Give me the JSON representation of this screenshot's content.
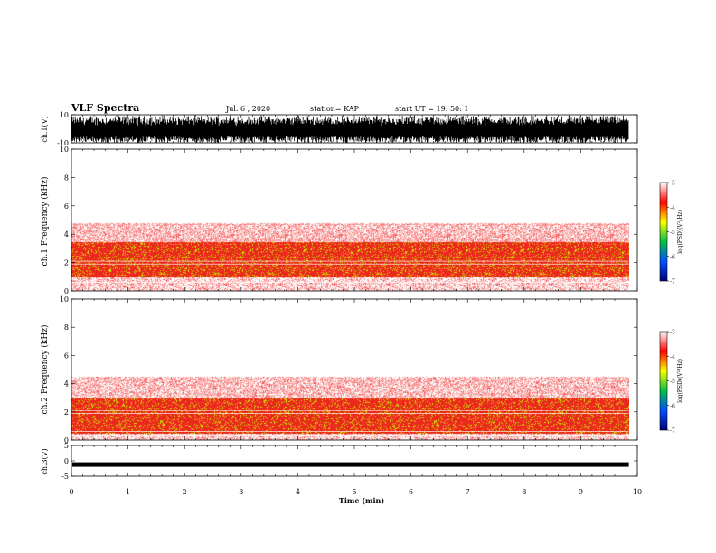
{
  "header": {
    "title": "VLF Spectra",
    "date": "Jul. 6 , 2020",
    "station": "station= KAP",
    "start_ut": "start UT = 19: 50: 1"
  },
  "colorbar": {
    "label": "log(PSD)(V²/Hz)",
    "ticks": [
      "-3",
      "-4",
      "-5",
      "-6",
      "-7"
    ],
    "range": [
      -7,
      -3
    ],
    "colors": [
      "#00007a",
      "#0050ff",
      "#00c040",
      "#ffff00",
      "#ff0000",
      "#ffffff"
    ]
  },
  "x_axis": {
    "label": "Time (min)",
    "ticks": [
      "0",
      "1",
      "2",
      "3",
      "4",
      "5",
      "6",
      "7",
      "8",
      "9",
      "10"
    ],
    "range": [
      0,
      10
    ]
  },
  "chart_data": [
    {
      "type": "line",
      "panel": "ch1-waveform",
      "ylabel": "ch.1(V)",
      "yticks": [
        "10",
        "-10"
      ],
      "ylim": [
        -10,
        10
      ],
      "xlim": [
        0,
        9.85
      ]
    },
    {
      "type": "heatmap",
      "panel": "ch1-spectrogram",
      "ylabel": "ch.1 Frequency (kHz)",
      "yticks": [
        "0",
        "2",
        "4",
        "6",
        "8",
        "10"
      ],
      "ylim": [
        0,
        10
      ],
      "xlim": [
        0,
        9.85
      ],
      "strong_band_khz": [
        1.0,
        3.5
      ],
      "moderate_band_khz": [
        3.5,
        4.8
      ],
      "peak_log_psd": -4.3
    },
    {
      "type": "heatmap",
      "panel": "ch2-spectrogram",
      "ylabel": "ch.2 Frequency (kHz)",
      "yticks": [
        "0",
        "2",
        "4",
        "6",
        "8",
        "10"
      ],
      "ylim": [
        0,
        10
      ],
      "xlim": [
        0,
        9.85
      ],
      "strong_band_khz": [
        0.5,
        3.0
      ],
      "moderate_band_khz": [
        3.0,
        4.5
      ],
      "peak_log_psd": -4.7
    },
    {
      "type": "line",
      "panel": "ch3-waveform",
      "ylabel": "ch.3(V)",
      "yticks": [
        "5",
        "0",
        "-5"
      ],
      "ylim": [
        -5,
        5
      ],
      "xlim": [
        0,
        9.85
      ],
      "level_v": -1.2
    }
  ]
}
